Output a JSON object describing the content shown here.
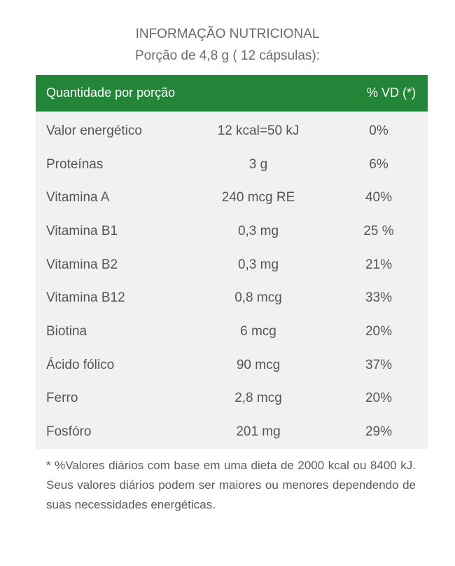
{
  "title": "INFORMAÇÃO NUTRICIONAL",
  "portion": "Porção  de 4,8 g ( 12 cápsulas):",
  "table": {
    "header_left": "Quantidade por porção",
    "header_right": "% VD (*)",
    "rows": [
      {
        "name": "Valor energético",
        "amount": "12 kcal=50 kJ",
        "vd": "0%"
      },
      {
        "name": "Proteínas",
        "amount": "3 g",
        "vd": "6%"
      },
      {
        "name": "Vitamina A",
        "amount": "240 mcg RE",
        "vd": "40%"
      },
      {
        "name": "Vitamina B1",
        "amount": "0,3 mg",
        "vd": "25 %"
      },
      {
        "name": "Vitamina B2",
        "amount": "0,3 mg",
        "vd": "21%"
      },
      {
        "name": "Vitamina B12",
        "amount": "0,8 mcg",
        "vd": "33%"
      },
      {
        "name": "Biotina",
        "amount": "6 mcg",
        "vd": "20%"
      },
      {
        "name": "Ácido fólico",
        "amount": "90 mcg",
        "vd": "37%"
      },
      {
        "name": "Ferro",
        "amount": "2,8 mcg",
        "vd": "20%"
      },
      {
        "name": "Fosfóro",
        "amount": "201 mg",
        "vd": "29%"
      }
    ]
  },
  "colors": {
    "header_bg": "#228538",
    "table_bg": "#f1f1f1"
  },
  "footnote": "* %Valores diários com base em uma dieta de 2000 kcal ou 8400 kJ. Seus valores diários podem ser maiores ou  menores dependendo de suas necessidades energéticas."
}
